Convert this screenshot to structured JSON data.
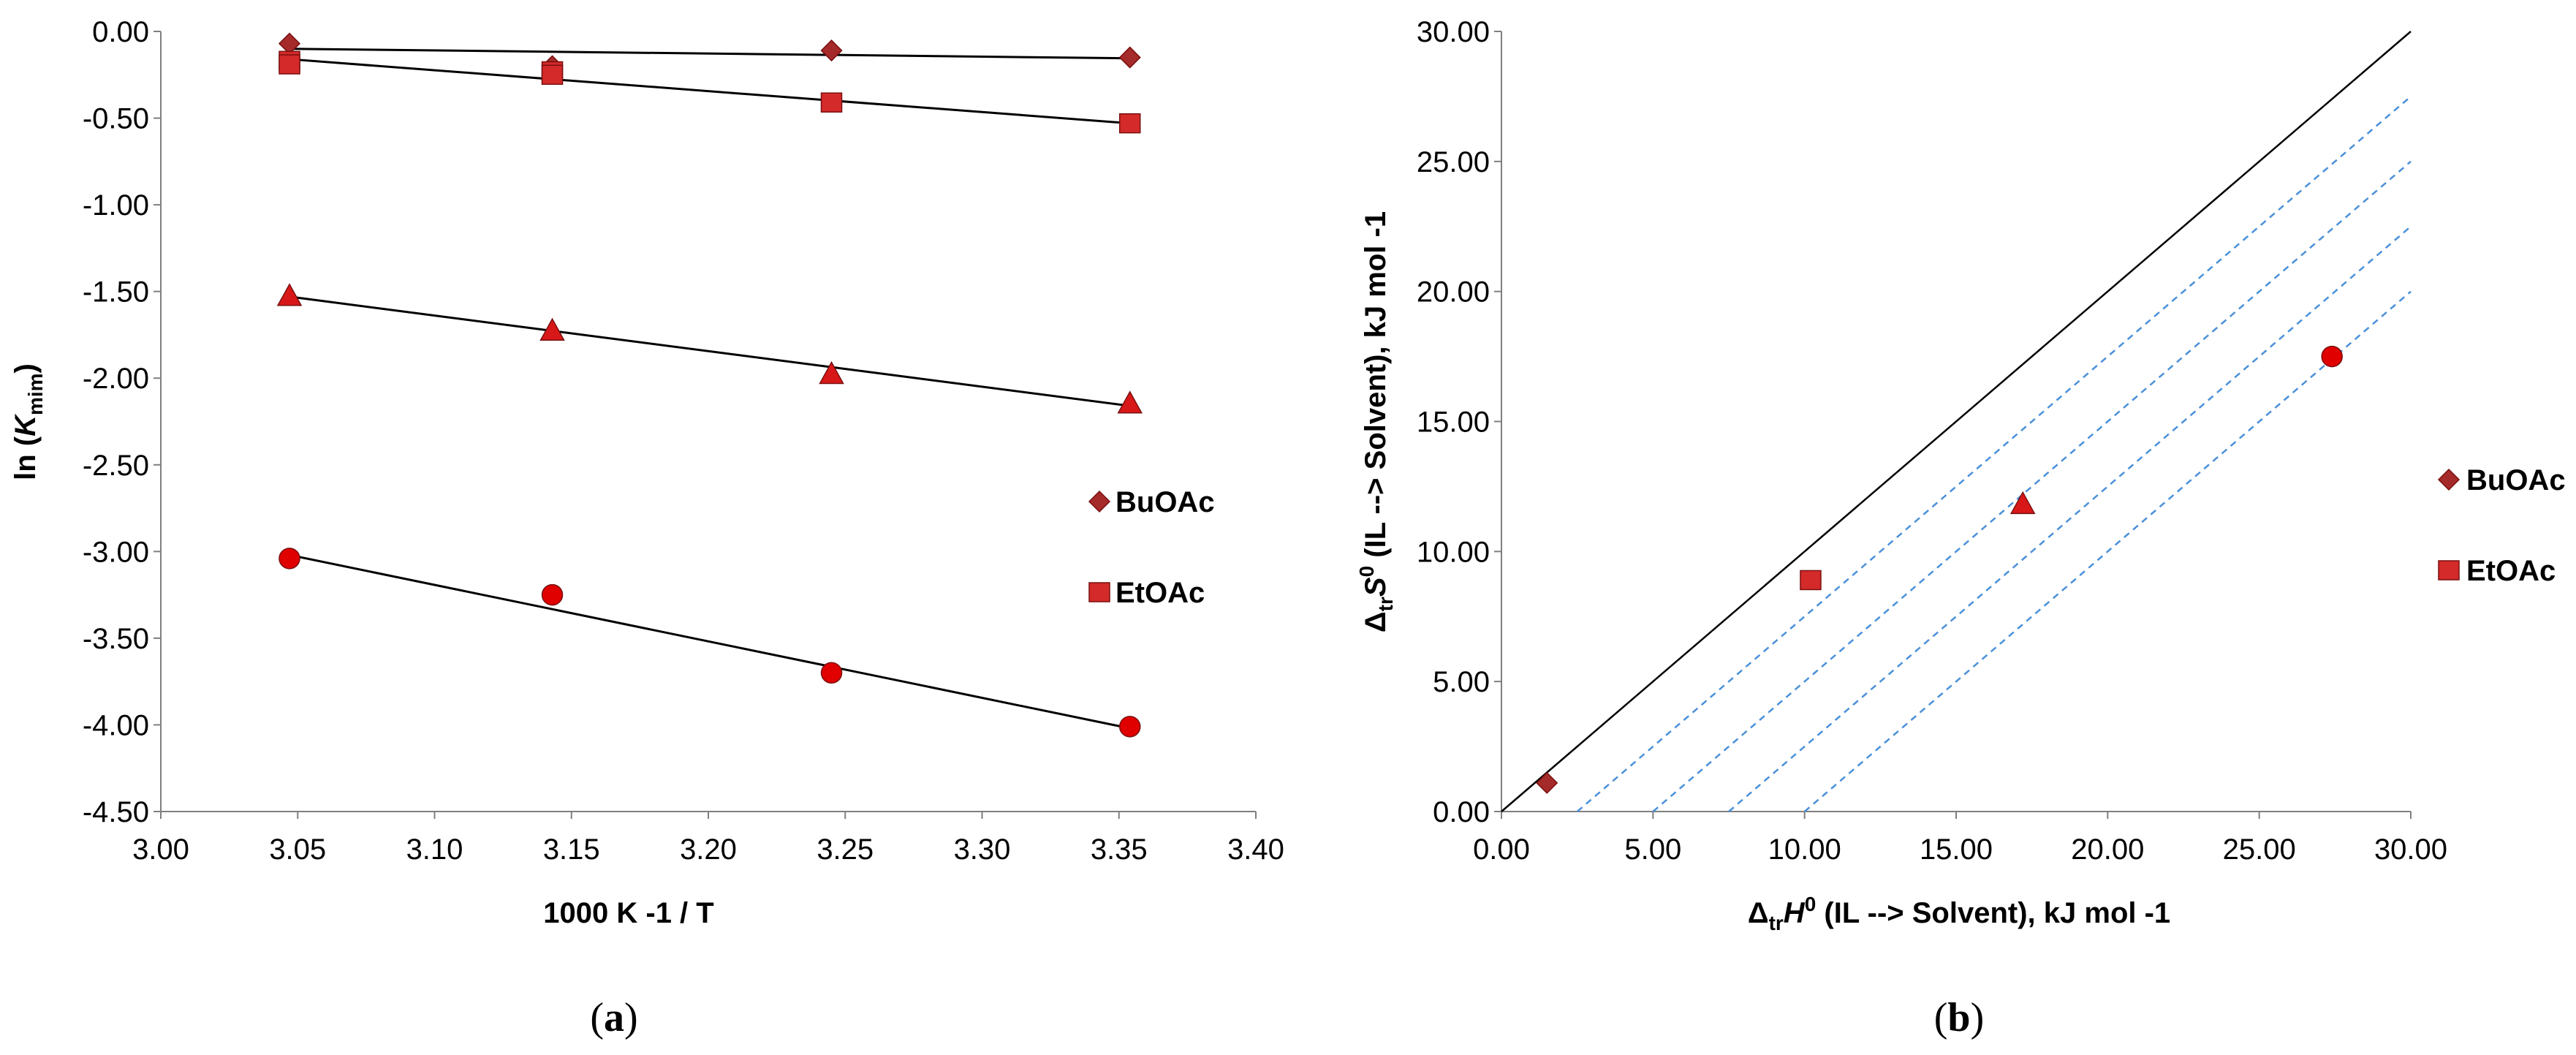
{
  "chart_data": [
    {
      "type": "scatter",
      "panel_label": {
        "open": "(",
        "letter": "a",
        "close": ")"
      },
      "xlabel": "1000 K -1 / T",
      "ylabel_parts": {
        "pre": "ln (",
        "italic": "K",
        "sub": "mim",
        "post": ")"
      },
      "xlim": [
        3.0,
        3.4
      ],
      "ylim": [
        -4.5,
        0.0
      ],
      "xticks": [
        3.0,
        3.05,
        3.1,
        3.15,
        3.2,
        3.25,
        3.3,
        3.35,
        3.4
      ],
      "xtick_labels": [
        "3.00",
        "3.05",
        "3.10",
        "3.15",
        "3.20",
        "3.25",
        "3.30",
        "3.35",
        "3.40"
      ],
      "yticks": [
        0.0,
        -0.5,
        -1.0,
        -1.5,
        -2.0,
        -2.5,
        -3.0,
        -3.5,
        -4.0,
        -4.5
      ],
      "ytick_labels": [
        "0.00",
        "-0.50",
        "-1.00",
        "-1.50",
        "-2.00",
        "-2.50",
        "-3.00",
        "-3.50",
        "-4.00",
        "-4.50"
      ],
      "legend": [
        {
          "label": "BuOAc",
          "marker": "diamond"
        },
        {
          "label": "EtOAc",
          "marker": "square"
        }
      ],
      "series": [
        {
          "marker": "diamond",
          "color": "#a52a2a",
          "points": [
            [
              3.047,
              -0.07
            ],
            [
              3.143,
              -0.2
            ],
            [
              3.245,
              -0.11
            ],
            [
              3.354,
              -0.15
            ]
          ],
          "fit": [
            [
              3.047,
              -0.1
            ],
            [
              3.354,
              -0.155
            ]
          ]
        },
        {
          "marker": "square",
          "color": "#d42a2a",
          "points": [
            [
              3.047,
              -0.17
            ],
            [
              3.047,
              -0.19
            ],
            [
              3.143,
              -0.23
            ],
            [
              3.143,
              -0.25
            ],
            [
              3.245,
              -0.41
            ],
            [
              3.354,
              -0.53
            ]
          ],
          "fit": [
            [
              3.047,
              -0.16
            ],
            [
              3.354,
              -0.53
            ]
          ]
        },
        {
          "marker": "triangle",
          "color": "#d81818",
          "points": [
            [
              3.047,
              -1.53
            ],
            [
              3.143,
              -1.73
            ],
            [
              3.245,
              -1.98
            ],
            [
              3.354,
              -2.15
            ]
          ],
          "fit": [
            [
              3.047,
              -1.53
            ],
            [
              3.354,
              -2.16
            ]
          ]
        },
        {
          "marker": "circle",
          "color": "#e00000",
          "points": [
            [
              3.047,
              -3.04
            ],
            [
              3.143,
              -3.25
            ],
            [
              3.245,
              -3.7
            ],
            [
              3.354,
              -4.01
            ]
          ],
          "fit": [
            [
              3.047,
              -3.02
            ],
            [
              3.354,
              -4.02
            ]
          ]
        }
      ]
    },
    {
      "type": "scatter",
      "panel_label": {
        "open": "(",
        "letter": "b",
        "close": ")"
      },
      "xlabel_parts": {
        "delta": "Δ",
        "sub": "tr",
        "italic": "H",
        "sup": "0",
        "post": " (IL --> Solvent), kJ mol -1"
      },
      "ylabel_parts": {
        "delta": "Δ",
        "sub": "tr",
        "italic": "S",
        "sup": "0",
        "post": " (IL --> Solvent), kJ mol -1"
      },
      "xlim": [
        0.0,
        30.0
      ],
      "ylim": [
        0.0,
        30.0
      ],
      "xticks": [
        0,
        5,
        10,
        15,
        20,
        25,
        30
      ],
      "xtick_labels": [
        "0.00",
        "5.00",
        "10.00",
        "15.00",
        "20.00",
        "25.00",
        "30.00"
      ],
      "yticks": [
        0,
        5,
        10,
        15,
        20,
        25,
        30
      ],
      "ytick_labels": [
        "0.00",
        "5.00",
        "10.00",
        "15.00",
        "20.00",
        "25.00",
        "30.00"
      ],
      "legend": [
        {
          "label": "BuOAc",
          "marker": "diamond"
        },
        {
          "label": "EtOAc",
          "marker": "square"
        }
      ],
      "reference_line": [
        [
          0,
          0
        ],
        [
          30,
          30
        ]
      ],
      "dashed_lines": [
        [
          [
            2.5,
            0
          ],
          [
            30,
            27.5
          ]
        ],
        [
          [
            5.0,
            0
          ],
          [
            30,
            25.0
          ]
        ],
        [
          [
            7.5,
            0
          ],
          [
            30,
            22.5
          ]
        ],
        [
          [
            10.0,
            0
          ],
          [
            30,
            20.0
          ]
        ]
      ],
      "series": [
        {
          "marker": "diamond",
          "color": "#a52a2a",
          "points": [
            [
              1.5,
              1.1
            ]
          ]
        },
        {
          "marker": "square",
          "color": "#d42a2a",
          "points": [
            [
              10.2,
              8.9
            ]
          ]
        },
        {
          "marker": "triangle",
          "color": "#d81818",
          "points": [
            [
              17.2,
              11.8
            ]
          ]
        },
        {
          "marker": "circle",
          "color": "#e00000",
          "points": [
            [
              27.4,
              17.5
            ]
          ]
        }
      ]
    }
  ]
}
